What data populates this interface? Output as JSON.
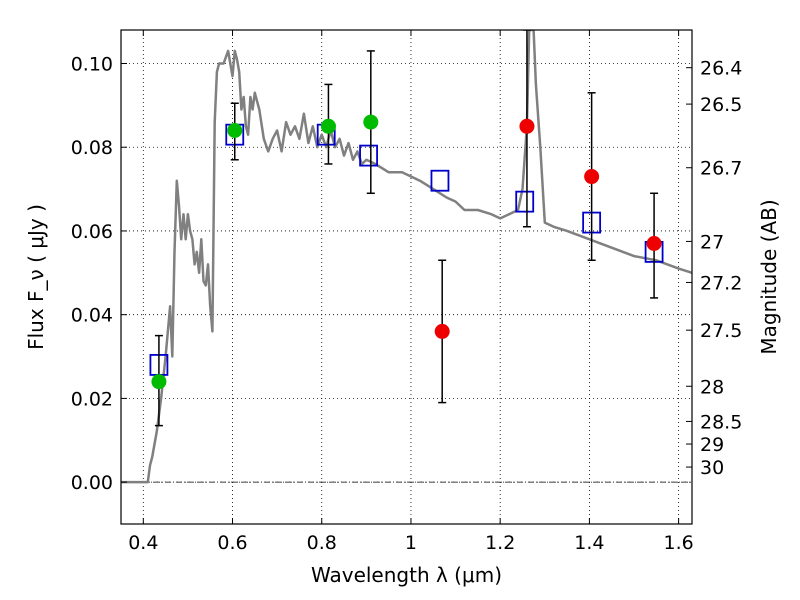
{
  "chart_data": {
    "type": "scatter",
    "xlabel": "Wavelength  λ (μm)",
    "ylabel": "Flux  F_ν  ( μJy )",
    "ylabel_right": "Magnitude (AB)",
    "xlim": [
      0.35,
      1.63
    ],
    "ylim": [
      -0.01,
      0.108
    ],
    "grid": true,
    "x_ticks": [
      0.4,
      0.6,
      0.8,
      1.0,
      1.2,
      1.4,
      1.6
    ],
    "x_tick_labels": [
      "0.4",
      "0.6",
      "0.8",
      "1",
      "1.2",
      "1.4",
      "1.6"
    ],
    "y_ticks": [
      0.0,
      0.02,
      0.04,
      0.06,
      0.08,
      0.1
    ],
    "y_tick_labels": [
      "0.00",
      "0.02",
      "0.04",
      "0.06",
      "0.08",
      "0.10"
    ],
    "right_ticks": [
      {
        "label": "26.4",
        "flux": 0.099
      },
      {
        "label": "26.5",
        "flux": 0.0903
      },
      {
        "label": "26.7",
        "flux": 0.0751
      },
      {
        "label": "27",
        "flux": 0.0575
      },
      {
        "label": "27.2",
        "flux": 0.0477
      },
      {
        "label": "27.5",
        "flux": 0.0363
      },
      {
        "label": "28",
        "flux": 0.0229
      },
      {
        "label": "28.5",
        "flux": 0.0145
      },
      {
        "label": "29",
        "flux": 0.0091
      },
      {
        "label": "30",
        "flux": 0.0036
      }
    ],
    "series": [
      {
        "type": "line",
        "color": "#808080",
        "x": [
          0.35,
          0.4,
          0.41,
          0.415,
          0.42,
          0.43,
          0.44,
          0.45,
          0.46,
          0.465,
          0.47,
          0.475,
          0.48,
          0.485,
          0.49,
          0.495,
          0.5,
          0.505,
          0.51,
          0.515,
          0.52,
          0.525,
          0.53,
          0.535,
          0.54,
          0.545,
          0.55,
          0.555,
          0.56,
          0.565,
          0.57,
          0.58,
          0.59,
          0.6,
          0.605,
          0.61,
          0.615,
          0.62,
          0.625,
          0.63,
          0.635,
          0.64,
          0.645,
          0.65,
          0.66,
          0.67,
          0.68,
          0.69,
          0.7,
          0.71,
          0.72,
          0.73,
          0.74,
          0.75,
          0.76,
          0.77,
          0.78,
          0.79,
          0.8,
          0.81,
          0.82,
          0.83,
          0.84,
          0.85,
          0.86,
          0.87,
          0.88,
          0.89,
          0.9,
          0.92,
          0.95,
          0.98,
          1.0,
          1.02,
          1.05,
          1.08,
          1.1,
          1.12,
          1.15,
          1.18,
          1.2,
          1.22,
          1.24,
          1.25,
          1.26,
          1.265,
          1.27,
          1.275,
          1.28,
          1.29,
          1.3,
          1.32,
          1.35,
          1.4,
          1.45,
          1.5,
          1.55,
          1.6,
          1.63
        ],
        "y": [
          0.0,
          0.0,
          0.0,
          0.004,
          0.006,
          0.012,
          0.02,
          0.03,
          0.042,
          0.03,
          0.055,
          0.072,
          0.066,
          0.058,
          0.064,
          0.058,
          0.064,
          0.06,
          0.058,
          0.052,
          0.055,
          0.05,
          0.058,
          0.048,
          0.047,
          0.052,
          0.042,
          0.036,
          0.086,
          0.098,
          0.1,
          0.1,
          0.103,
          0.097,
          0.103,
          0.101,
          0.098,
          0.089,
          0.092,
          0.085,
          0.083,
          0.092,
          0.089,
          0.093,
          0.089,
          0.082,
          0.079,
          0.082,
          0.084,
          0.079,
          0.086,
          0.083,
          0.085,
          0.082,
          0.088,
          0.081,
          0.085,
          0.08,
          0.083,
          0.08,
          0.084,
          0.08,
          0.082,
          0.078,
          0.081,
          0.077,
          0.079,
          0.076,
          0.077,
          0.076,
          0.074,
          0.074,
          0.073,
          0.072,
          0.07,
          0.068,
          0.067,
          0.065,
          0.065,
          0.064,
          0.063,
          0.064,
          0.065,
          0.07,
          0.085,
          0.108,
          0.108,
          0.108,
          0.095,
          0.08,
          0.062,
          0.061,
          0.06,
          0.058,
          0.056,
          0.054,
          0.053,
          0.051,
          0.05
        ]
      },
      {
        "type": "scatter",
        "marker": "open-square",
        "color": "#0000cc",
        "x": [
          0.435,
          0.605,
          0.81,
          0.905,
          1.065,
          1.255,
          1.405,
          1.545
        ],
        "y": [
          0.028,
          0.083,
          0.083,
          0.078,
          0.072,
          0.067,
          0.062,
          0.055
        ]
      },
      {
        "type": "scatter",
        "marker": "filled-circle",
        "color": "#00bb00",
        "x": [
          0.435,
          0.605,
          0.815,
          0.91
        ],
        "y": [
          0.024,
          0.084,
          0.085,
          0.086
        ],
        "yerr_low": [
          0.0135,
          0.077,
          0.076,
          0.069
        ],
        "yerr_high": [
          0.035,
          0.0905,
          0.095,
          0.103
        ]
      },
      {
        "type": "scatter",
        "marker": "filled-circle",
        "color": "#ee0000",
        "x": [
          1.07,
          1.26,
          1.405,
          1.545
        ],
        "y": [
          0.036,
          0.085,
          0.073,
          0.057
        ],
        "yerr_low": [
          0.019,
          0.061,
          0.053,
          0.044
        ],
        "yerr_high": [
          0.053,
          0.108,
          0.093,
          0.069
        ]
      }
    ]
  }
}
